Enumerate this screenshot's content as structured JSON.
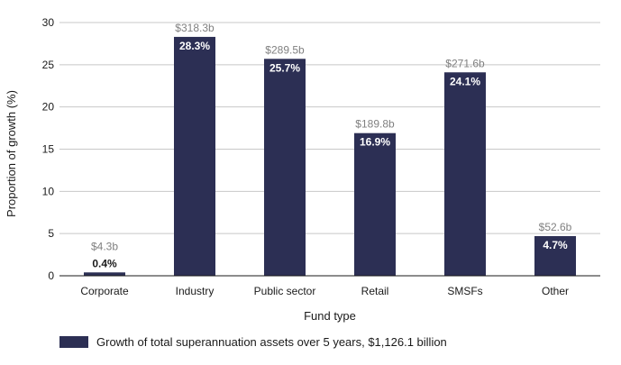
{
  "chart_data": {
    "type": "bar",
    "categories": [
      "Corporate",
      "Industry",
      "Public sector",
      "Retail",
      "SMSFs",
      "Other"
    ],
    "values": [
      0.4,
      28.3,
      25.7,
      16.9,
      24.1,
      4.7
    ],
    "value_labels": [
      "0.4%",
      "28.3%",
      "25.7%",
      "16.9%",
      "24.1%",
      "4.7%"
    ],
    "amount_labels": [
      "$4.3b",
      "$318.3b",
      "$289.5b",
      "$189.8b",
      "$271.6b",
      "$52.6b"
    ],
    "xlabel": "Fund type",
    "ylabel": "Proportion of growth (%)",
    "ylim": [
      0,
      30
    ],
    "yticks": [
      0,
      5,
      10,
      15,
      20,
      25,
      30
    ],
    "grid": true,
    "legend_position": "bottom-left",
    "series": [
      {
        "name": "Growth of total superannuation assets over 5 years, $1,126.1 billion",
        "color": "#2c2f54"
      }
    ]
  },
  "colors": {
    "bar": "#2c2f54",
    "grid": "#c8c8c8",
    "amount_text": "#808080"
  }
}
